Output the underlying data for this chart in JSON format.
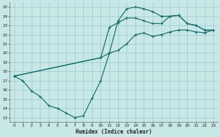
{
  "xlabel": "Humidex (Indice chaleur)",
  "bg_color": "#c8e8e8",
  "grid_color": "#a0cccc",
  "line_color": "#1a6b6b",
  "xlim": [
    -0.5,
    23.5
  ],
  "ylim": [
    12.5,
    25.5
  ],
  "xticks": [
    0,
    1,
    2,
    3,
    4,
    5,
    6,
    7,
    8,
    9,
    10,
    11,
    12,
    13,
    14,
    15,
    16,
    17,
    18,
    19,
    20,
    21,
    22,
    23
  ],
  "yticks": [
    13,
    14,
    15,
    16,
    17,
    18,
    19,
    20,
    21,
    22,
    23,
    24,
    25
  ],
  "line1_x": [
    0,
    1,
    2,
    3,
    4,
    5,
    6,
    7,
    8,
    9,
    10,
    11,
    12,
    13,
    14,
    15,
    16,
    17,
    18,
    19,
    20,
    21,
    22,
    23
  ],
  "line1_y": [
    17.5,
    17.0,
    15.9,
    15.3,
    14.3,
    14.0,
    13.5,
    13.0,
    13.2,
    15.1,
    17.0,
    20.0,
    23.5,
    24.8,
    25.0,
    24.8,
    24.5,
    24.0,
    24.0,
    24.1,
    23.2,
    23.0,
    22.5,
    22.5
  ],
  "line2_x": [
    0,
    10,
    11,
    12,
    13,
    14,
    15,
    16,
    17,
    18,
    19,
    20,
    21,
    22,
    23
  ],
  "line2_y": [
    17.5,
    19.5,
    22.8,
    23.3,
    23.8,
    23.8,
    23.5,
    23.2,
    23.2,
    24.0,
    24.1,
    23.2,
    23.0,
    22.5,
    22.5
  ],
  "line3_x": [
    0,
    10,
    11,
    12,
    13,
    14,
    15,
    16,
    17,
    18,
    19,
    20,
    21,
    22,
    23
  ],
  "line3_y": [
    17.5,
    19.5,
    20.0,
    20.3,
    21.0,
    22.0,
    22.2,
    21.8,
    22.0,
    22.3,
    22.5,
    22.5,
    22.3,
    22.2,
    22.5
  ]
}
